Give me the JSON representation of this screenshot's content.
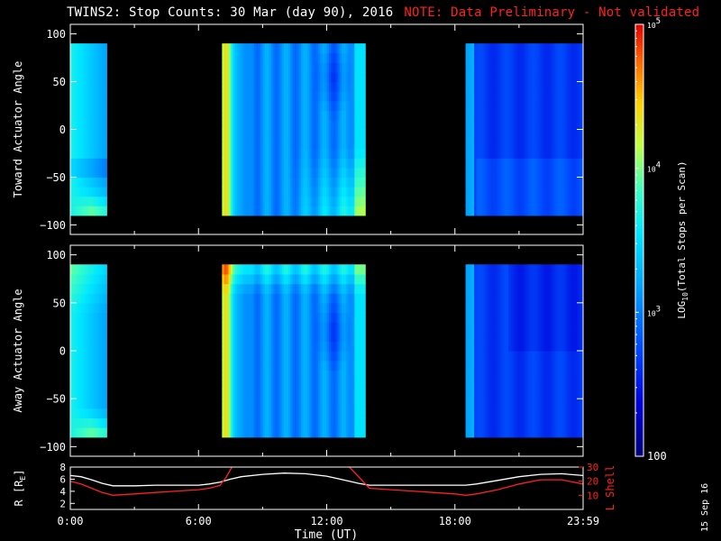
{
  "title": {
    "main": "TWINS2: Stop Counts: 30 Mar (day  90), 2016",
    "note": "NOTE: Data Preliminary - Not validated"
  },
  "stamp": "15 Sep 16",
  "colors": {
    "background": "#000000",
    "axes": "#ffffff",
    "note": "#ff2020",
    "r_line": "#ffffff",
    "lshell_line": "#ff2020"
  },
  "chart_data": [
    {
      "type": "heatmap",
      "ylabel": "Toward Actuator Angle",
      "ylim": [
        -110,
        110
      ],
      "yticks": [
        -100,
        -50,
        0,
        50,
        100
      ],
      "xlim": [
        0,
        24
      ],
      "data_y_range": [
        -90,
        90
      ],
      "data_segments": [
        [
          0.0,
          1.7
        ],
        [
          7.1,
          13.8
        ],
        [
          18.5,
          24.0
        ]
      ],
      "colorscale": "log"
    },
    {
      "type": "heatmap",
      "ylabel": "Away Actuator Angle",
      "ylim": [
        -110,
        110
      ],
      "yticks": [
        -100,
        -50,
        0,
        50,
        100
      ],
      "xlim": [
        0,
        24
      ],
      "data_y_range": [
        -90,
        90
      ],
      "data_segments": [
        [
          0.0,
          1.7
        ],
        [
          7.1,
          13.8
        ],
        [
          18.5,
          24.0
        ]
      ],
      "colorscale": "log"
    },
    {
      "type": "colorbar",
      "label": "LOG10(Total Stops per Scan)",
      "label_main": "LOG",
      "label_sub": "10",
      "label_tail": "(Total Stops per Scan)",
      "range": [
        100,
        100000
      ],
      "ticks": [
        {
          "value": 100000,
          "base": "10",
          "exp": "5"
        },
        {
          "value": 10000,
          "base": "10",
          "exp": "4"
        },
        {
          "value": 1000,
          "base": "10",
          "exp": "3"
        },
        {
          "value": 100,
          "base": "100",
          "exp": ""
        }
      ]
    },
    {
      "type": "line",
      "xlabel": "Time (UT)",
      "xlim": [
        0,
        24
      ],
      "xticks": [
        {
          "value": 0,
          "label": "0:00"
        },
        {
          "value": 6,
          "label": "6:00"
        },
        {
          "value": 12,
          "label": "12:00"
        },
        {
          "value": 18,
          "label": "18:00"
        },
        {
          "value": 24,
          "label": "23:59"
        }
      ],
      "ylabel": "R [RE]",
      "ylabel_main": "R [R",
      "ylabel_sub": "E",
      "ylabel_tail": "]",
      "ylim": [
        1,
        8
      ],
      "yticks": [
        2,
        4,
        6,
        8
      ],
      "y2label": "L Shell",
      "y2lim": [
        0,
        30
      ],
      "y2ticks": [
        10,
        20,
        30
      ],
      "series": [
        {
          "axis": "left",
          "x": [
            0,
            0.5,
            1,
            1.5,
            2,
            3,
            4,
            5,
            6,
            6.5,
            7,
            7.5,
            8,
            9,
            10,
            11,
            12,
            12.5,
            13,
            13.5,
            14,
            15,
            16,
            17,
            18,
            18.5,
            19,
            20,
            21,
            22,
            23,
            24
          ],
          "values": [
            6.6,
            6.4,
            5.9,
            5.3,
            4.9,
            4.9,
            5.0,
            5.0,
            5.0,
            5.2,
            5.5,
            6.0,
            6.4,
            6.8,
            7.0,
            6.9,
            6.5,
            6.1,
            5.7,
            5.3,
            5.0,
            5.0,
            5.0,
            5.0,
            5.0,
            5.0,
            5.2,
            5.8,
            6.4,
            6.8,
            6.9,
            6.6
          ]
        },
        {
          "axis": "right",
          "x": [
            0,
            0.5,
            1,
            1.5,
            2,
            3,
            4,
            5,
            6,
            6.5,
            7,
            7.3,
            7.6,
            13.0,
            13.5,
            14,
            15,
            16,
            17,
            18,
            18.5,
            19,
            20,
            21,
            22,
            23,
            24
          ],
          "values": [
            20,
            18,
            15,
            12,
            10,
            11,
            12,
            13,
            14,
            15,
            17,
            23,
            31,
            31,
            23,
            15,
            14,
            13,
            12,
            11,
            10,
            11,
            14,
            18,
            21,
            21,
            18
          ]
        }
      ]
    }
  ]
}
